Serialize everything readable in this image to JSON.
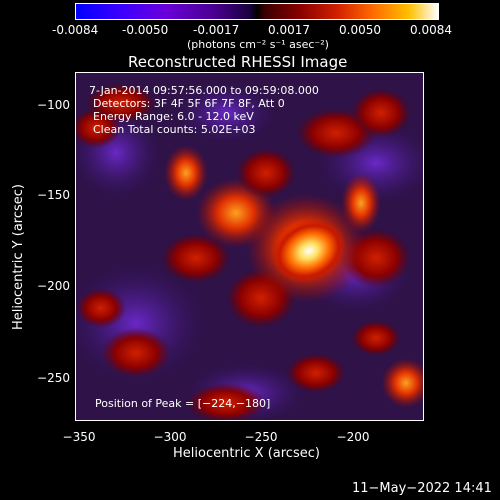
{
  "colorbar": {
    "ticks": [
      "-0.0084",
      "-0.0050",
      "-0.0017",
      "0.0017",
      "0.0050",
      "0.0084"
    ],
    "unit_label": "(photons cm⁻² s⁻¹ asec⁻²)"
  },
  "plot": {
    "title": "Reconstructed RHESSI Image",
    "x_label": "Heliocentric X (arcsec)",
    "y_label": "Heliocentric Y (arcsec)",
    "x_ticks": [
      "−350",
      "−300",
      "−250",
      "−200"
    ],
    "y_ticks": [
      "−100",
      "−150",
      "−200",
      "−250"
    ],
    "annotations": {
      "time_range": "7-Jan-2014 09:57:56.000 to 09:59:08.000",
      "detectors": "Detectors: 3F 4F 5F 6F 7F 8F, Att 0",
      "energy": "Energy Range: 6.0 - 12.0 keV",
      "clean": "Clean    Total counts: 5.02E+03",
      "peak": "Position of Peak = [−224,−180]"
    }
  },
  "footer": {
    "timestamp": "11−May−2022 14:41"
  },
  "colors": {
    "background": "#000000",
    "text": "#ffffff",
    "negative_fill": "#5a2a90",
    "positive_peak": "#ffffff",
    "positive_mid": "#ff6a00",
    "positive_low": "#b01000"
  }
}
